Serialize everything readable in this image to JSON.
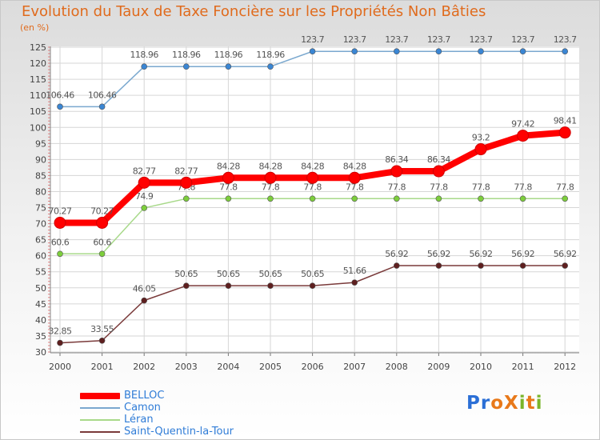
{
  "title": "Evolution du Taux de Taxe Foncière sur les Propriétés Non Bâties",
  "subtitle": "(en %)",
  "logo": {
    "text": "ProXiti",
    "letters": [
      "P",
      "r",
      "o",
      "X",
      "i",
      "t",
      "i"
    ],
    "colors": [
      "#2b6fd6",
      "#2b6fd6",
      "#e8791a",
      "#e8791a",
      "#7ab52a",
      "#e8791a",
      "#7ab52a"
    ]
  },
  "chart_data": {
    "type": "line",
    "title": "Evolution du Taux de Taxe Foncière sur les Propriétés Non Bâties",
    "ylabel": "(en %)",
    "xlabel": "",
    "ylim": [
      30,
      125
    ],
    "yticks": [
      30,
      35,
      40,
      45,
      50,
      55,
      60,
      65,
      70,
      75,
      80,
      85,
      90,
      95,
      100,
      105,
      110,
      115,
      120,
      125
    ],
    "x": [
      "2000",
      "2001",
      "2002",
      "2003",
      "2004",
      "2005",
      "2006",
      "2007",
      "2008",
      "2009",
      "2010",
      "2011",
      "2012"
    ],
    "grid": true,
    "legend_position": "bottom-left",
    "series": [
      {
        "name": "BELLOC",
        "color": "#ff0000",
        "markerColor": "#ff0000",
        "emphasis": true,
        "values": [
          70.27,
          70.27,
          82.77,
          82.77,
          84.28,
          84.28,
          84.28,
          84.28,
          86.34,
          86.34,
          93.2,
          97.42,
          98.41
        ],
        "labels": [
          "70.27",
          "70.27",
          "82.77",
          "82.77",
          "84.28",
          "84.28",
          "84.28",
          "84.28",
          "86.34",
          "86.34",
          "93.2",
          "97.42",
          "98.41"
        ]
      },
      {
        "name": "Camon",
        "color": "#7aa8cf",
        "markerColor": "#3a86d4",
        "emphasis": false,
        "values": [
          106.46,
          106.46,
          118.96,
          118.96,
          118.96,
          118.96,
          123.7,
          123.7,
          123.7,
          123.7,
          123.7,
          123.7,
          123.7
        ],
        "labels": [
          "106.46",
          "106.46",
          "118.96",
          "118.96",
          "118.96",
          "118.96",
          "123.7",
          "123.7",
          "123.7",
          "123.7",
          "123.7",
          "123.7",
          "123.7"
        ]
      },
      {
        "name": "Léran",
        "color": "#a8d98a",
        "markerColor": "#7dce3c",
        "emphasis": false,
        "values": [
          60.6,
          60.6,
          74.9,
          77.8,
          77.8,
          77.8,
          77.8,
          77.8,
          77.8,
          77.8,
          77.8,
          77.8,
          77.8
        ],
        "labels": [
          "60.6",
          "60.6",
          "74.9",
          "77.8",
          "77.8",
          "77.8",
          "77.8",
          "77.8",
          "77.8",
          "77.8",
          "77.8",
          "77.8",
          "77.8"
        ]
      },
      {
        "name": "Saint-Quentin-la-Tour",
        "color": "#7a3a3a",
        "markerColor": "#5e1f1f",
        "emphasis": false,
        "values": [
          32.85,
          33.55,
          46.05,
          50.65,
          50.65,
          50.65,
          50.65,
          51.66,
          56.92,
          56.92,
          56.92,
          56.92,
          56.92
        ],
        "labels": [
          "32.85",
          "33.55",
          "46.05",
          "50.65",
          "50.65",
          "50.65",
          "50.65",
          "51.66",
          "56.92",
          "56.92",
          "56.92",
          "56.92",
          "56.92"
        ]
      }
    ]
  }
}
